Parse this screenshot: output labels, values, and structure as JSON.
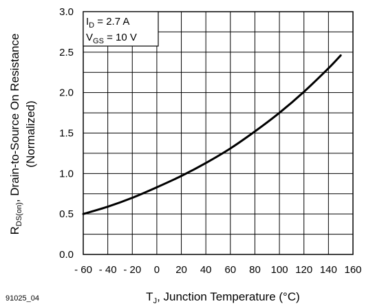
{
  "figure_id": "91025_04",
  "chart_data": {
    "type": "line",
    "xlabel": {
      "main": "T",
      "sub": "J",
      "rest": ", Junction Temperature (°C)"
    },
    "ylabel": {
      "line1": {
        "main": "R",
        "sub": "DS(on)",
        "rest": ", Drain-to-Source On Resistance"
      },
      "line2": "(Normalized)"
    },
    "x_ticks": [
      {
        "value": -60,
        "label": "- 60"
      },
      {
        "value": -40,
        "label": "- 40"
      },
      {
        "value": -20,
        "label": "- 20"
      },
      {
        "value": 0,
        "label": "0"
      },
      {
        "value": 20,
        "label": "20"
      },
      {
        "value": 40,
        "label": "40"
      },
      {
        "value": 60,
        "label": "60"
      },
      {
        "value": 80,
        "label": "80"
      },
      {
        "value": 100,
        "label": "100"
      },
      {
        "value": 120,
        "label": "120"
      },
      {
        "value": 140,
        "label": "140"
      },
      {
        "value": 160,
        "label": "160"
      }
    ],
    "y_ticks": [
      {
        "value": 0.0,
        "label": "0.0"
      },
      {
        "value": 0.5,
        "label": "0.5"
      },
      {
        "value": 1.0,
        "label": "1.0"
      },
      {
        "value": 1.5,
        "label": "1.5"
      },
      {
        "value": 2.0,
        "label": "2.0"
      },
      {
        "value": 2.5,
        "label": "2.5"
      },
      {
        "value": 3.0,
        "label": "3.0"
      }
    ],
    "xlim": [
      -60,
      160
    ],
    "ylim": [
      0,
      3
    ],
    "x_minor_step": 20,
    "y_minor_step": 0.25,
    "grid": true,
    "annotations": [
      {
        "main": "I",
        "sub": "D",
        "rest": " = 2.7 A"
      },
      {
        "main": "V",
        "sub": "GS",
        "rest": " = 10 V"
      }
    ],
    "series": [
      {
        "color": "#000000",
        "x": [
          -60,
          -40,
          -20,
          0,
          20,
          40,
          60,
          80,
          100,
          120,
          140,
          150
        ],
        "y": [
          0.5,
          0.59,
          0.7,
          0.83,
          0.97,
          1.13,
          1.31,
          1.52,
          1.75,
          2.01,
          2.3,
          2.46
        ]
      }
    ]
  }
}
